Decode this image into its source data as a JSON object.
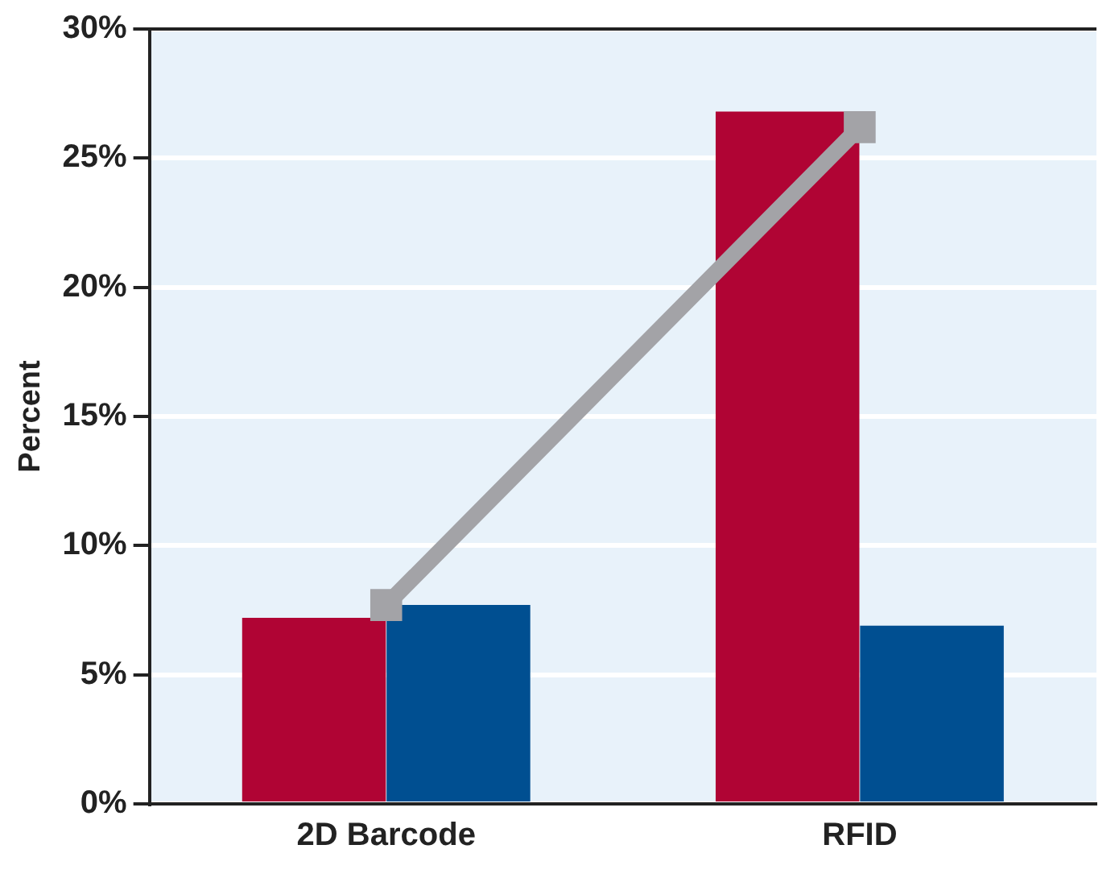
{
  "chart_data": {
    "type": "bar",
    "ylabel": "Percent",
    "categories": [
      "2D Barcode",
      "RFID"
    ],
    "series": [
      {
        "color": "#b00434",
        "values": [
          7.2,
          26.8
        ]
      },
      {
        "color": "#004f91",
        "values": [
          7.7,
          6.9
        ]
      },
      {
        "type": "line",
        "color": "#a3a3a7",
        "values": [
          7.7,
          26.2
        ]
      }
    ],
    "ylim": [
      0,
      30
    ],
    "yticks": [
      {
        "value": 0,
        "label": "0%"
      },
      {
        "value": 5,
        "label": "5%"
      },
      {
        "value": 10,
        "label": "10%"
      },
      {
        "value": 15,
        "label": "15%"
      },
      {
        "value": 20,
        "label": "20%"
      },
      {
        "value": 25,
        "label": "25%"
      },
      {
        "value": 30,
        "label": "30%"
      }
    ],
    "grid": "y",
    "legend": false,
    "marker": "square",
    "line_style": "solid"
  }
}
